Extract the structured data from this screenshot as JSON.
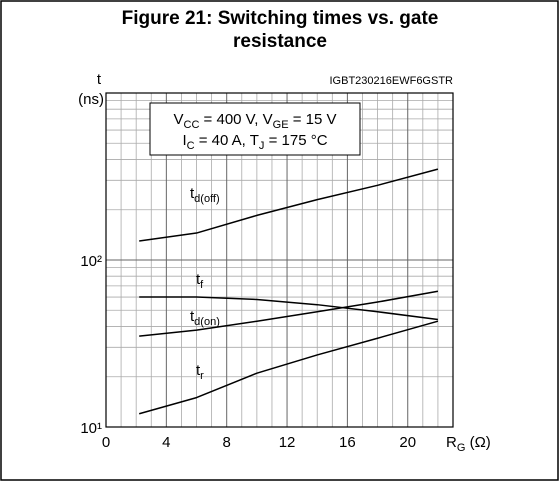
{
  "chart_data": {
    "type": "line",
    "title": [
      "Figure 21: Switching times vs. gate",
      "resistance"
    ],
    "watermark": "IGBT230216EWF6GSTR",
    "y_label": [
      "t",
      "(ns)"
    ],
    "x_label": [
      "R",
      "G",
      " (Ω)"
    ],
    "annotation": [
      [
        "V",
        "CC",
        " = 400 V, V",
        "GE",
        " = 15 V"
      ],
      [
        "I",
        "C",
        " = 40 A, T",
        "J",
        " = 175 °C"
      ]
    ],
    "x": [
      2.2,
      6,
      10,
      14,
      18,
      22
    ],
    "series": [
      {
        "name": "t",
        "name_sub": "d(off)",
        "color": "#000000",
        "values": [
          130,
          145,
          185,
          230,
          280,
          350
        ]
      },
      {
        "name": "t",
        "name_sub": "f",
        "color": "#000000",
        "values": [
          60,
          60,
          58,
          54,
          49,
          44
        ]
      },
      {
        "name": "t",
        "name_sub": "d(on)",
        "color": "#000000",
        "values": [
          35,
          38,
          43,
          49,
          56,
          65
        ]
      },
      {
        "name": "t",
        "name_sub": "r",
        "color": "#000000",
        "values": [
          12,
          15,
          21,
          27,
          34,
          43
        ]
      }
    ],
    "xlim": [
      0,
      23
    ],
    "xticks": [
      0,
      4,
      8,
      12,
      16,
      20
    ],
    "x_minor_ticks": [
      1,
      2,
      3,
      5,
      6,
      7,
      9,
      10,
      11,
      13,
      14,
      15,
      17,
      18,
      19,
      21,
      22
    ],
    "ylim": [
      10,
      1000
    ],
    "yscale": "log",
    "yticks": [
      {
        "value": 10,
        "label": "10¹"
      },
      {
        "value": 100,
        "label": "10²"
      }
    ],
    "y_minor_ticks": [
      20,
      30,
      40,
      50,
      60,
      70,
      80,
      90,
      200,
      300,
      400,
      500,
      600,
      700,
      800,
      900
    ],
    "grid": true
  }
}
